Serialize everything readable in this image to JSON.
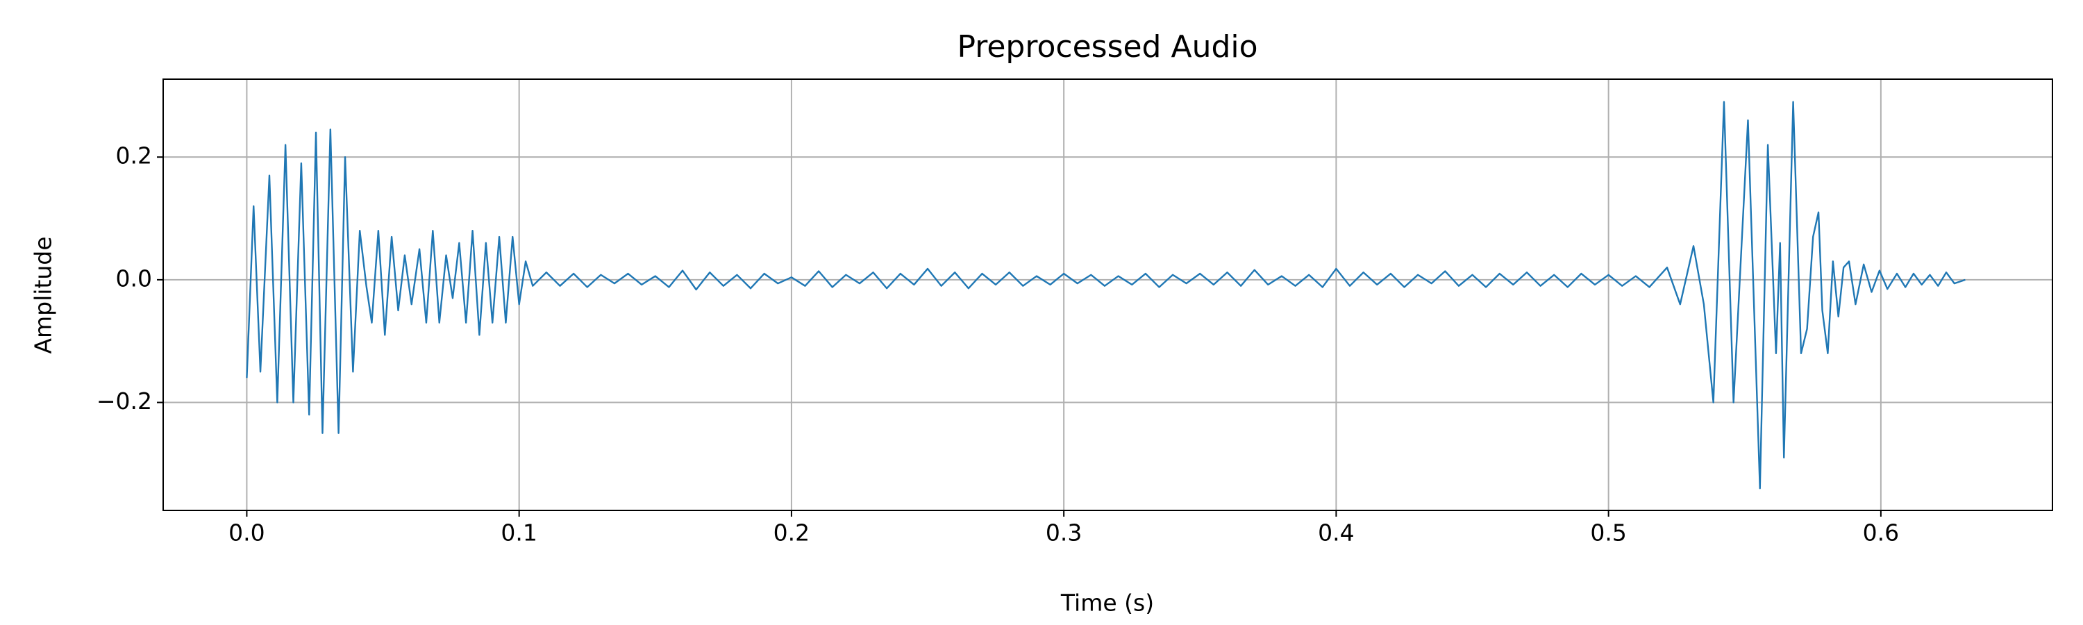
{
  "chart_data": {
    "type": "line",
    "title": "Preprocessed Audio",
    "xlabel": "Time (s)",
    "ylabel": "Amplitude",
    "color": "#1f77b4",
    "grid": true,
    "xlim": [
      -0.0307,
      0.663
    ],
    "ylim": [
      -0.376,
      0.327
    ],
    "xticks": [
      {
        "value": 0,
        "label": "0.0"
      },
      0.1,
      0.2,
      0.3,
      0.4,
      0.5,
      0.6
    ],
    "yticks": [
      {
        "value": -0.2,
        "label": "−0.2"
      },
      {
        "value": 0,
        "label": "0.0"
      },
      0.2
    ],
    "x": [
      0,
      0.0025,
      0.005,
      0.0083,
      0.0112,
      0.0142,
      0.0171,
      0.02,
      0.0229,
      0.0254,
      0.0278,
      0.0307,
      0.0337,
      0.0361,
      0.039,
      0.0415,
      0.0439,
      0.0459,
      0.0483,
      0.0507,
      0.0532,
      0.0556,
      0.058,
      0.0605,
      0.0634,
      0.0659,
      0.0683,
      0.0707,
      0.0732,
      0.0756,
      0.078,
      0.0805,
      0.0829,
      0.0854,
      0.0878,
      0.0902,
      0.0927,
      0.0951,
      0.0976,
      0.1,
      0.1024,
      0.105,
      0.11,
      0.115,
      0.12,
      0.125,
      0.13,
      0.135,
      0.14,
      0.145,
      0.15,
      0.155,
      0.16,
      0.165,
      0.17,
      0.175,
      0.18,
      0.185,
      0.19,
      0.195,
      0.2,
      0.205,
      0.21,
      0.215,
      0.22,
      0.225,
      0.23,
      0.235,
      0.24,
      0.245,
      0.25,
      0.255,
      0.26,
      0.265,
      0.27,
      0.275,
      0.28,
      0.285,
      0.29,
      0.295,
      0.3,
      0.305,
      0.31,
      0.315,
      0.32,
      0.325,
      0.33,
      0.335,
      0.34,
      0.345,
      0.35,
      0.355,
      0.36,
      0.365,
      0.37,
      0.375,
      0.38,
      0.385,
      0.39,
      0.395,
      0.4,
      0.405,
      0.41,
      0.415,
      0.42,
      0.425,
      0.43,
      0.435,
      0.44,
      0.445,
      0.45,
      0.455,
      0.46,
      0.465,
      0.47,
      0.475,
      0.48,
      0.485,
      0.49,
      0.495,
      0.5,
      0.505,
      0.51,
      0.515,
      0.5215,
      0.5263,
      0.5312,
      0.535,
      0.5385,
      0.5424,
      0.5459,
      0.5512,
      0.5556,
      0.5585,
      0.5615,
      0.563,
      0.5644,
      0.5678,
      0.5707,
      0.5729,
      0.5751,
      0.5771,
      0.5785,
      0.5805,
      0.5824,
      0.5844,
      0.5863,
      0.5883,
      0.5907,
      0.5937,
      0.5966,
      0.5995,
      0.6024,
      0.6059,
      0.609,
      0.612,
      0.615,
      0.618,
      0.621,
      0.624,
      0.627,
      0.631
    ],
    "values": [
      -0.16,
      0.12,
      -0.15,
      0.17,
      -0.2,
      0.22,
      -0.2,
      0.19,
      -0.22,
      0.24,
      -0.25,
      0.245,
      -0.25,
      0.2,
      -0.15,
      0.08,
      -0.01,
      -0.07,
      0.08,
      -0.09,
      0.07,
      -0.05,
      0.04,
      -0.04,
      0.05,
      -0.07,
      0.08,
      -0.07,
      0.04,
      -0.03,
      0.06,
      -0.07,
      0.08,
      -0.09,
      0.06,
      -0.07,
      0.07,
      -0.07,
      0.07,
      -0.04,
      0.03,
      -0.01,
      0.012,
      -0.01,
      0.01,
      -0.012,
      0.008,
      -0.006,
      0.01,
      -0.008,
      0.006,
      -0.012,
      0.015,
      -0.016,
      0.012,
      -0.01,
      0.008,
      -0.014,
      0.01,
      -0.006,
      0.004,
      -0.01,
      0.014,
      -0.012,
      0.008,
      -0.006,
      0.012,
      -0.014,
      0.01,
      -0.008,
      0.018,
      -0.01,
      0.012,
      -0.014,
      0.01,
      -0.008,
      0.012,
      -0.01,
      0.006,
      -0.008,
      0.01,
      -0.006,
      0.008,
      -0.01,
      0.006,
      -0.008,
      0.01,
      -0.012,
      0.008,
      -0.006,
      0.01,
      -0.008,
      0.012,
      -0.01,
      0.016,
      -0.008,
      0.006,
      -0.01,
      0.008,
      -0.012,
      0.018,
      -0.01,
      0.012,
      -0.008,
      0.01,
      -0.012,
      0.008,
      -0.006,
      0.014,
      -0.01,
      0.008,
      -0.012,
      0.01,
      -0.008,
      0.012,
      -0.01,
      0.008,
      -0.012,
      0.01,
      -0.008,
      0.008,
      -0.01,
      0.006,
      -0.012,
      0.02,
      -0.04,
      0.055,
      -0.04,
      -0.2,
      0.29,
      -0.2,
      0.26,
      -0.34,
      0.22,
      -0.12,
      0.06,
      -0.29,
      0.29,
      -0.12,
      -0.08,
      0.07,
      0.11,
      -0.05,
      -0.12,
      0.03,
      -0.06,
      0.02,
      0.03,
      -0.04,
      0.025,
      -0.02,
      0.015,
      -0.015,
      0.01,
      -0.012,
      0.01,
      -0.008,
      0.008,
      -0.01,
      0.012,
      -0.006,
      0
    ]
  }
}
